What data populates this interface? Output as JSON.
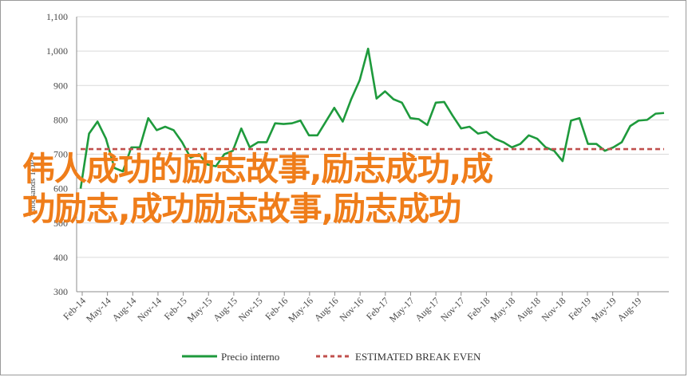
{
  "chart_data": {
    "type": "line",
    "title": "",
    "xlabel": "",
    "ylabel": "Thousands TOP",
    "ylim": [
      300,
      1100
    ],
    "yticks": [
      "300",
      "400",
      "500",
      "600",
      "700",
      "800",
      "900",
      "1,000",
      "1,100"
    ],
    "grid": true,
    "legend_placement": "bottom",
    "x_tick_labels": [
      "Feb-14",
      "May-14",
      "Aug-14",
      "Nov-14",
      "Feb-15",
      "May-15",
      "Aug-15",
      "Nov-15",
      "Feb-16",
      "May-16",
      "Aug-16",
      "Nov-16",
      "Feb-17",
      "May-17",
      "Aug-17",
      "Nov-17",
      "Feb-18",
      "May-18",
      "Aug-18",
      "Nov-18",
      "Feb-19",
      "May-19",
      "Aug-19"
    ],
    "series": [
      {
        "name": "Precio interno",
        "color": "#1e9a3c",
        "style": "solid",
        "values": [
          600,
          760,
          795,
          745,
          660,
          650,
          720,
          720,
          805,
          770,
          780,
          770,
          735,
          690,
          700,
          670,
          665,
          700,
          710,
          775,
          720,
          735,
          735,
          790,
          788,
          790,
          798,
          755,
          755,
          795,
          835,
          795,
          860,
          915,
          1007,
          862,
          883,
          860,
          850,
          805,
          802,
          785,
          850,
          852,
          812,
          775,
          780,
          760,
          765,
          745,
          735,
          720,
          730,
          755,
          745,
          720,
          710,
          680,
          798,
          805,
          730,
          730,
          710,
          720,
          735,
          782,
          798,
          800,
          818,
          820
        ]
      },
      {
        "name": "ESTIMATED BREAK EVEN",
        "color": "#c0504d",
        "style": "dashed",
        "values": [
          715,
          715
        ]
      }
    ]
  },
  "overlay": {
    "line1": "伟人成功的励志故事,励志成功,成",
    "line2": "功励志,成功励志故事,励志成功",
    "color": "#ef7d1a"
  }
}
